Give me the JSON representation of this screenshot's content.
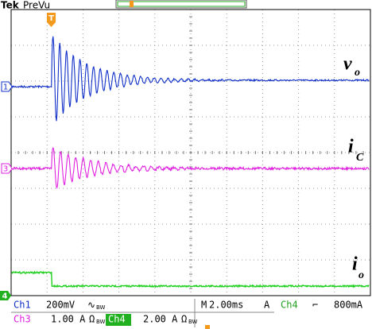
{
  "header": {
    "brand": "Tek",
    "mode": "PreVu"
  },
  "trigger_marker": "T",
  "channel_markers": [
    "1",
    "3",
    "4"
  ],
  "trace_labels": [
    {
      "symbol": "v",
      "subscript": "o"
    },
    {
      "symbol": "i",
      "subscript": "C"
    },
    {
      "symbol": "i",
      "subscript": "o"
    }
  ],
  "status": {
    "row1": {
      "ch1": "Ch1",
      "ch1_scale": "200mV",
      "ch1_coupling": "∿",
      "ch1_bw": "BW",
      "time_prefix": "M",
      "timebase": "2.00ms",
      "trigger_prefix": "A",
      "trigger_source": "Ch4",
      "trigger_slope": "⌐",
      "trigger_level": "800mA"
    },
    "row2": {
      "ch3": "Ch3",
      "ch3_scale": "1.00 A",
      "ch3_coupling": "Ω",
      "ch3_bw": "BW",
      "ch4": "Ch4",
      "ch4_scale": "2.00 A",
      "ch4_coupling": "Ω",
      "ch4_bw": "BW"
    }
  }
}
